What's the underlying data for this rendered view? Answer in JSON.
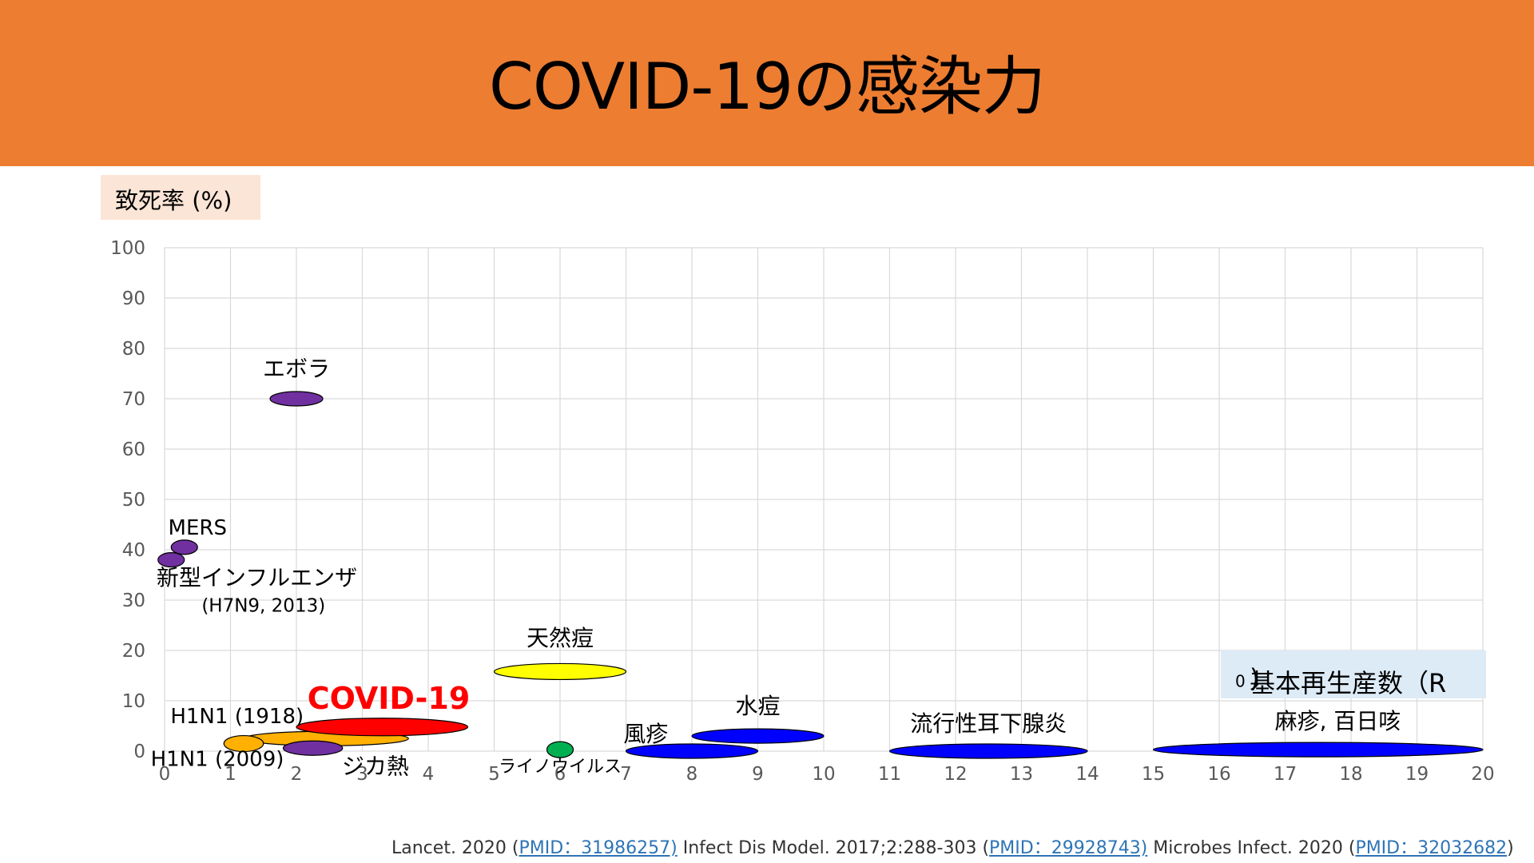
{
  "slide": {
    "title": "COVID-19の感染力",
    "y_axis_label": "致死率 (%)",
    "r0_label": "基本再生産数（R",
    "r0_sub": "0",
    "r0_close": ")",
    "footer": {
      "part1": "Lancet. 2020 (",
      "link1": "PMID：31986257)",
      "part2": " Infect Dis Model. 2017;2:288-303 (",
      "link2": "PMID：29928743)",
      "part3": " Microbes Infect. 2020 (",
      "link3": "PMID：32032682",
      "part4": ")"
    }
  },
  "colors": {
    "header": "#ED7D31",
    "purple": "#7030A0",
    "orange": "#FFB000",
    "red": "#FF0000",
    "yellow": "#FFFF00",
    "green": "#00B050",
    "blue": "#0000FF",
    "covid_label": "#FF0000"
  },
  "chart_data": {
    "type": "scatter",
    "xlim": [
      0,
      20
    ],
    "ylim": [
      0,
      100
    ],
    "x_ticks": [
      "0",
      "1",
      "2",
      "3",
      "4",
      "5",
      "6",
      "7",
      "8",
      "9",
      "10",
      "11",
      "12",
      "13",
      "14",
      "15",
      "16",
      "17",
      "18",
      "19",
      "20"
    ],
    "y_ticks": [
      "0",
      "10",
      "20",
      "30",
      "40",
      "50",
      "60",
      "70",
      "80",
      "90",
      "100"
    ],
    "grid": true,
    "series": [
      {
        "name": "エボラ",
        "color": "purple",
        "x": [
          1.6,
          2.4
        ],
        "y": 70
      },
      {
        "name": "MERS",
        "color": "purple",
        "x": [
          0.1,
          0.5
        ],
        "y": 40.5
      },
      {
        "name": "新型インフルエンザ",
        "color": "purple",
        "x": [
          -0.1,
          0.3
        ],
        "y": 38
      },
      {
        "name": "H1N1 (1918)",
        "color": "orange",
        "x": [
          1.2,
          3.7
        ],
        "y": 2.5
      },
      {
        "name": "H1N1 (2009)",
        "color": "orange",
        "x": [
          0.9,
          1.5
        ],
        "y": 1.5
      },
      {
        "name": "ジカ熱",
        "color": "purple",
        "x": [
          1.8,
          2.7
        ],
        "y": 0.6
      },
      {
        "name": "COVID-19",
        "color": "red",
        "x": [
          2,
          4.6
        ],
        "y": 4.8
      },
      {
        "name": "天然痘",
        "color": "yellow",
        "x": [
          5,
          7
        ],
        "y": 15.8
      },
      {
        "name": "ライノウイルス",
        "color": "green",
        "x": [
          5.8,
          6.2
        ],
        "y": 0.3
      },
      {
        "name": "風疹",
        "color": "blue",
        "x": [
          7,
          9
        ],
        "y": 0
      },
      {
        "name": "水痘",
        "color": "blue",
        "x": [
          8,
          10
        ],
        "y": 3
      },
      {
        "name": "流行性耳下腺炎",
        "color": "blue",
        "x": [
          11,
          14
        ],
        "y": 0
      },
      {
        "name": "麻疹, 百日咳",
        "color": "blue",
        "x": [
          15,
          20
        ],
        "y": 0.3
      }
    ],
    "labels": [
      {
        "text": "エボラ",
        "x": 2,
        "y": 76
      },
      {
        "text": "MERS",
        "x": 0.5,
        "y": 44.5
      },
      {
        "text": "新型インフルエンザ",
        "x": 1.4,
        "y": 34.5
      },
      {
        "text": "(H7N9, 2013)",
        "x": 1.5,
        "y": 29
      },
      {
        "text": "H1N1 (1918)",
        "x": 1.1,
        "y": 7
      },
      {
        "text": "H1N1 (2009)",
        "x": 0.8,
        "y": -1.5
      },
      {
        "text": "ジカ熱",
        "x": 3.2,
        "y": -3
      },
      {
        "text": "COVID-19",
        "x": 3.4,
        "y": 10.5
      },
      {
        "text": "天然痘",
        "x": 6,
        "y": 22.5
      },
      {
        "text": "ライノウイルス",
        "x": 6,
        "y": -3
      },
      {
        "text": "風疹",
        "x": 7.3,
        "y": 3.5
      },
      {
        "text": "水痘",
        "x": 9,
        "y": 9
      },
      {
        "text": "流行性耳下腺炎",
        "x": 12.5,
        "y": 5.5
      },
      {
        "text": "麻疹, 百日咳",
        "x": 17.8,
        "y": 6
      }
    ]
  }
}
